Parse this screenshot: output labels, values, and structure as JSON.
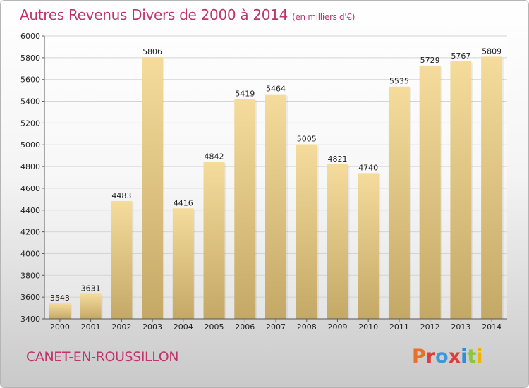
{
  "header": {
    "title": "Autres Revenus Divers de 2000 à 2014",
    "subtitle": "(en milliers d'€)"
  },
  "footer": {
    "city": "CANET-EN-ROUSSILLON",
    "logo": [
      "P",
      "r",
      "o",
      "x",
      "i",
      "t",
      "i"
    ]
  },
  "colors": {
    "title": "#c0336c",
    "bar_top": "#f5dc9c",
    "bar_bottom": "#c4a866",
    "logo": [
      "#e8702a",
      "#e23b3b",
      "#3a9ad9",
      "#e23b3b",
      "#2f8fd6",
      "#8cc63f",
      "#f0b400"
    ]
  },
  "chart_data": {
    "type": "bar",
    "title": "Autres Revenus Divers de 2000 à 2014",
    "ylabel": "",
    "xlabel": "",
    "ylim": [
      3400,
      6000
    ],
    "yticks": [
      3400,
      3600,
      3800,
      4000,
      4200,
      4400,
      4600,
      4800,
      5000,
      5200,
      5400,
      5600,
      5800,
      6000
    ],
    "grid": true,
    "categories": [
      "2000",
      "2001",
      "2002",
      "2003",
      "2004",
      "2005",
      "2006",
      "2007",
      "2008",
      "2009",
      "2010",
      "2011",
      "2012",
      "2013",
      "2014"
    ],
    "values": [
      3543,
      3631,
      4483,
      5806,
      4416,
      4842,
      5419,
      5464,
      5005,
      4821,
      4740,
      5535,
      5729,
      5767,
      5809
    ]
  }
}
